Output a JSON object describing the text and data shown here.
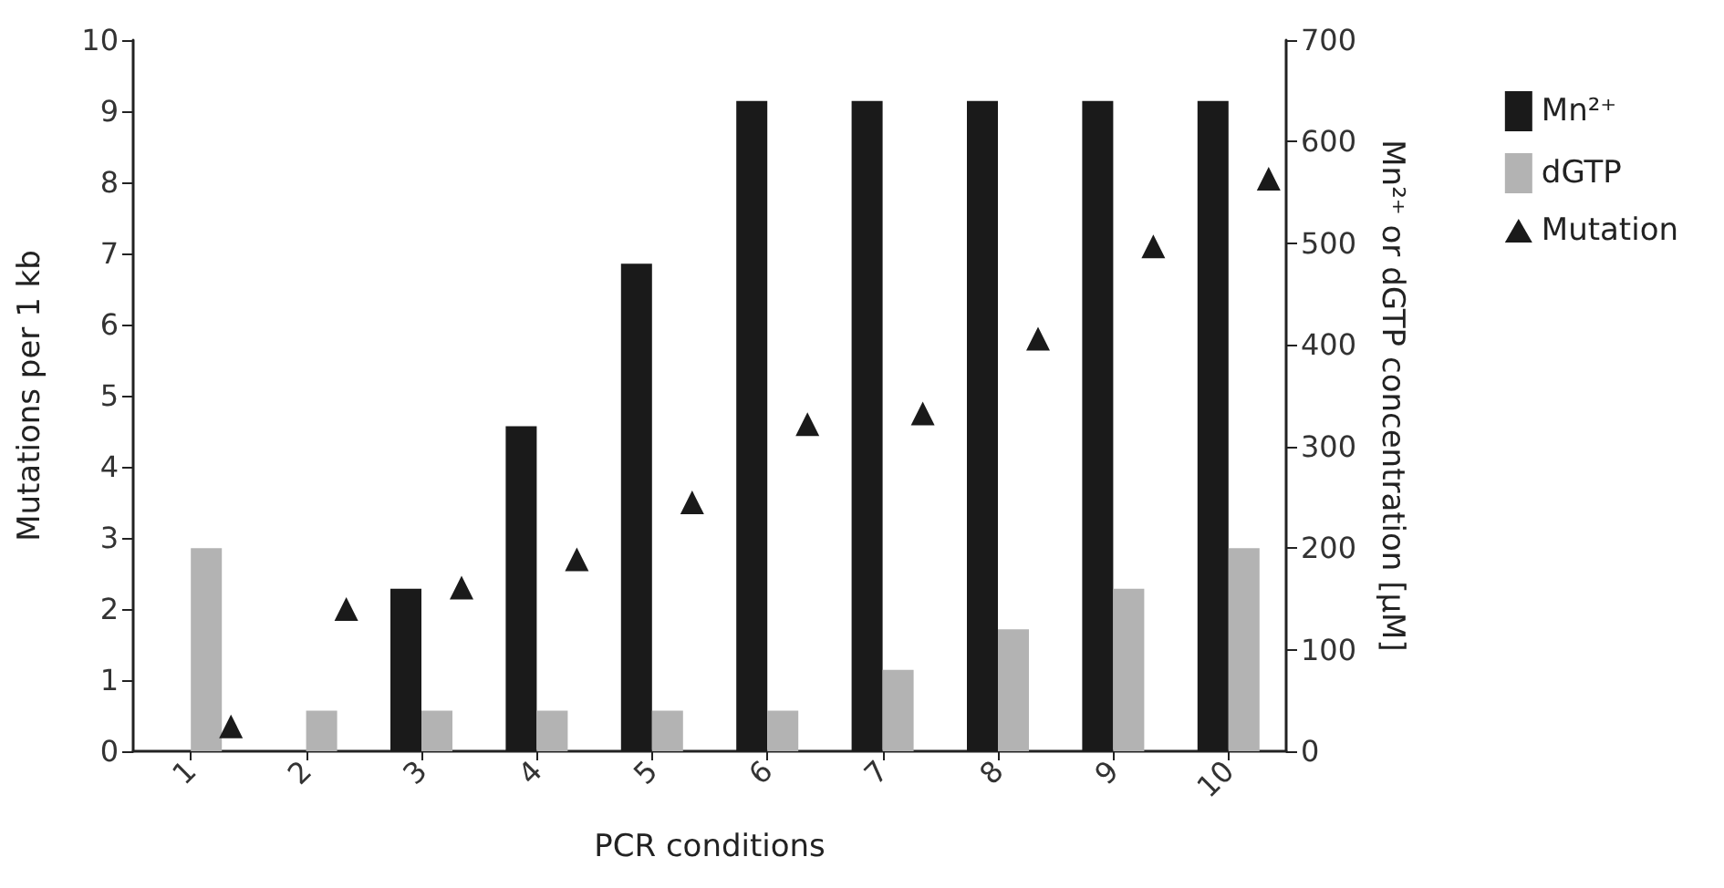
{
  "chart_data": {
    "type": "bar",
    "xlabel": "PCR conditions",
    "ylabel": "Mutations per 1 kb",
    "y2label": "Mn²⁺ or dGTP concentration [µM]",
    "categories": [
      "1",
      "2",
      "3",
      "4",
      "5",
      "6",
      "7",
      "8",
      "9",
      "10"
    ],
    "series": [
      {
        "name": "Mn²⁺",
        "axis": "y2",
        "color": "#1a1a1a",
        "values": [
          0,
          0,
          160,
          320,
          480,
          640,
          640,
          640,
          640,
          640
        ]
      },
      {
        "name": "dGTP",
        "axis": "y2",
        "color": "#b3b3b3",
        "values": [
          200,
          40,
          40,
          40,
          40,
          40,
          80,
          120,
          160,
          200
        ]
      },
      {
        "name": "Mutation",
        "type": "scatter",
        "color": "#1a1a1a",
        "marker": "triangle",
        "x": [
          "1",
          "2",
          "3",
          "4",
          "5",
          "6",
          "7",
          "8",
          "9",
          "10"
        ],
        "values": [
          0.35,
          2.0,
          2.3,
          2.7,
          3.5,
          4.6,
          4.75,
          5.8,
          7.1,
          8.05
        ]
      }
    ],
    "ylim": [
      0,
      10
    ],
    "yticks": [
      0,
      1,
      2,
      3,
      4,
      5,
      6,
      7,
      8,
      9,
      10
    ],
    "y2lim": [
      0,
      700
    ],
    "y2ticks": [
      0,
      100,
      200,
      300,
      400,
      500,
      600,
      700
    ],
    "grid": false,
    "legend": "top right"
  }
}
